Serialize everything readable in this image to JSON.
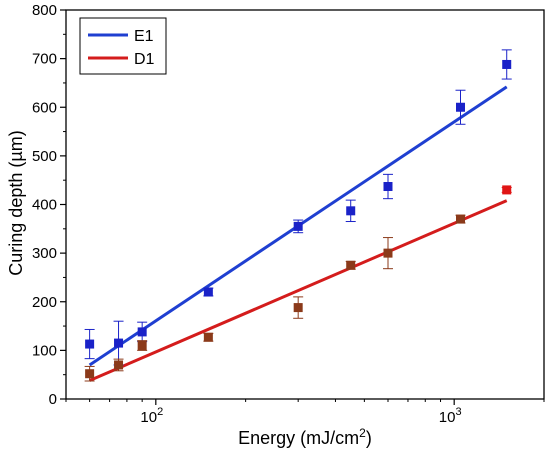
{
  "chart_data": {
    "type": "scatter",
    "xlabel": "Energy (mJ/cm",
    "xlabel_sup": "2",
    "xlabel_end": ")",
    "ylabel": "Curing depth (µm)",
    "x_scale": "log",
    "xlim": [
      50,
      2000
    ],
    "ylim": [
      0,
      800
    ],
    "y_ticks": [
      "0",
      "100",
      "200",
      "300",
      "400",
      "500",
      "600",
      "700",
      "800"
    ],
    "x_ticks": [
      {
        "base": "10",
        "exp": "2",
        "value": 100
      },
      {
        "base": "10",
        "exp": "3",
        "value": 1000
      }
    ],
    "legend_position": "top-left",
    "grid": false,
    "series": [
      {
        "name": "E1",
        "color": "#1f3fd1",
        "marker_color": "#1a22c8",
        "x": [
          60,
          75,
          90,
          150,
          300,
          450,
          600,
          1050,
          1500
        ],
        "y": [
          113,
          115,
          138,
          220,
          355,
          387,
          437,
          600,
          688
        ],
        "err": [
          30,
          45,
          20,
          8,
          13,
          22,
          25,
          35,
          30
        ],
        "fit": [
          [
            60,
            70
          ],
          [
            1500,
            642
          ]
        ]
      },
      {
        "name": "D1",
        "color": "#d41c1c",
        "marker_color": "#8b3a1a",
        "last_marker_color": "#e01515",
        "x": [
          60,
          75,
          90,
          150,
          300,
          450,
          600,
          1050,
          1500
        ],
        "y": [
          52,
          70,
          110,
          127,
          188,
          275,
          300,
          370,
          430
        ],
        "err": [
          15,
          12,
          10,
          8,
          22,
          8,
          32,
          8,
          5
        ],
        "fit": [
          [
            60,
            38
          ],
          [
            1500,
            408
          ]
        ]
      }
    ]
  }
}
